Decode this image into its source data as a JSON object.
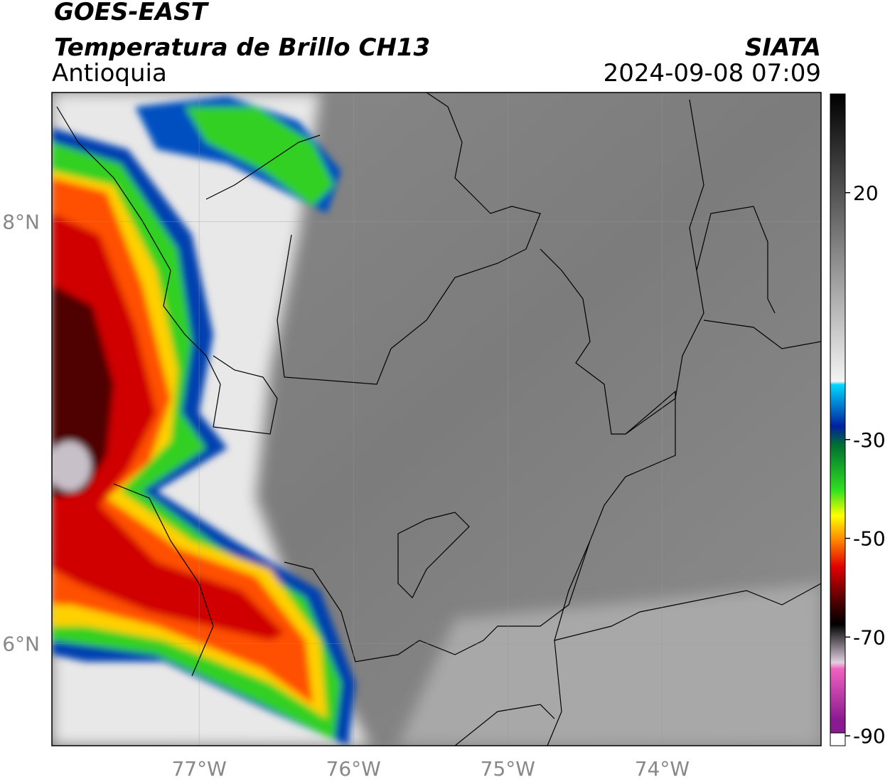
{
  "header": {
    "title": "GOES-EAST",
    "subtitle": "Temperatura de Brillo CH13",
    "region": "Antioquia",
    "source": "SIATA",
    "datetime": "2024-09-08 07:09"
  },
  "map": {
    "lonlim": [
      -77.954,
      -72.97
    ],
    "latlim": [
      5.516,
      8.612
    ],
    "lonticks": [
      {
        "value": -77,
        "label": "77°W"
      },
      {
        "value": -76,
        "label": "76°W"
      },
      {
        "value": -75,
        "label": "75°W"
      },
      {
        "value": -74,
        "label": "74°W"
      }
    ],
    "latticks": [
      {
        "value": 6,
        "label": "6°N"
      },
      {
        "value": 8,
        "label": "8°N"
      }
    ],
    "grid": true
  },
  "colorbar": {
    "lim": [
      -92,
      40
    ],
    "ticks": [
      -90,
      -70,
      -50,
      -30,
      20
    ]
  }
}
